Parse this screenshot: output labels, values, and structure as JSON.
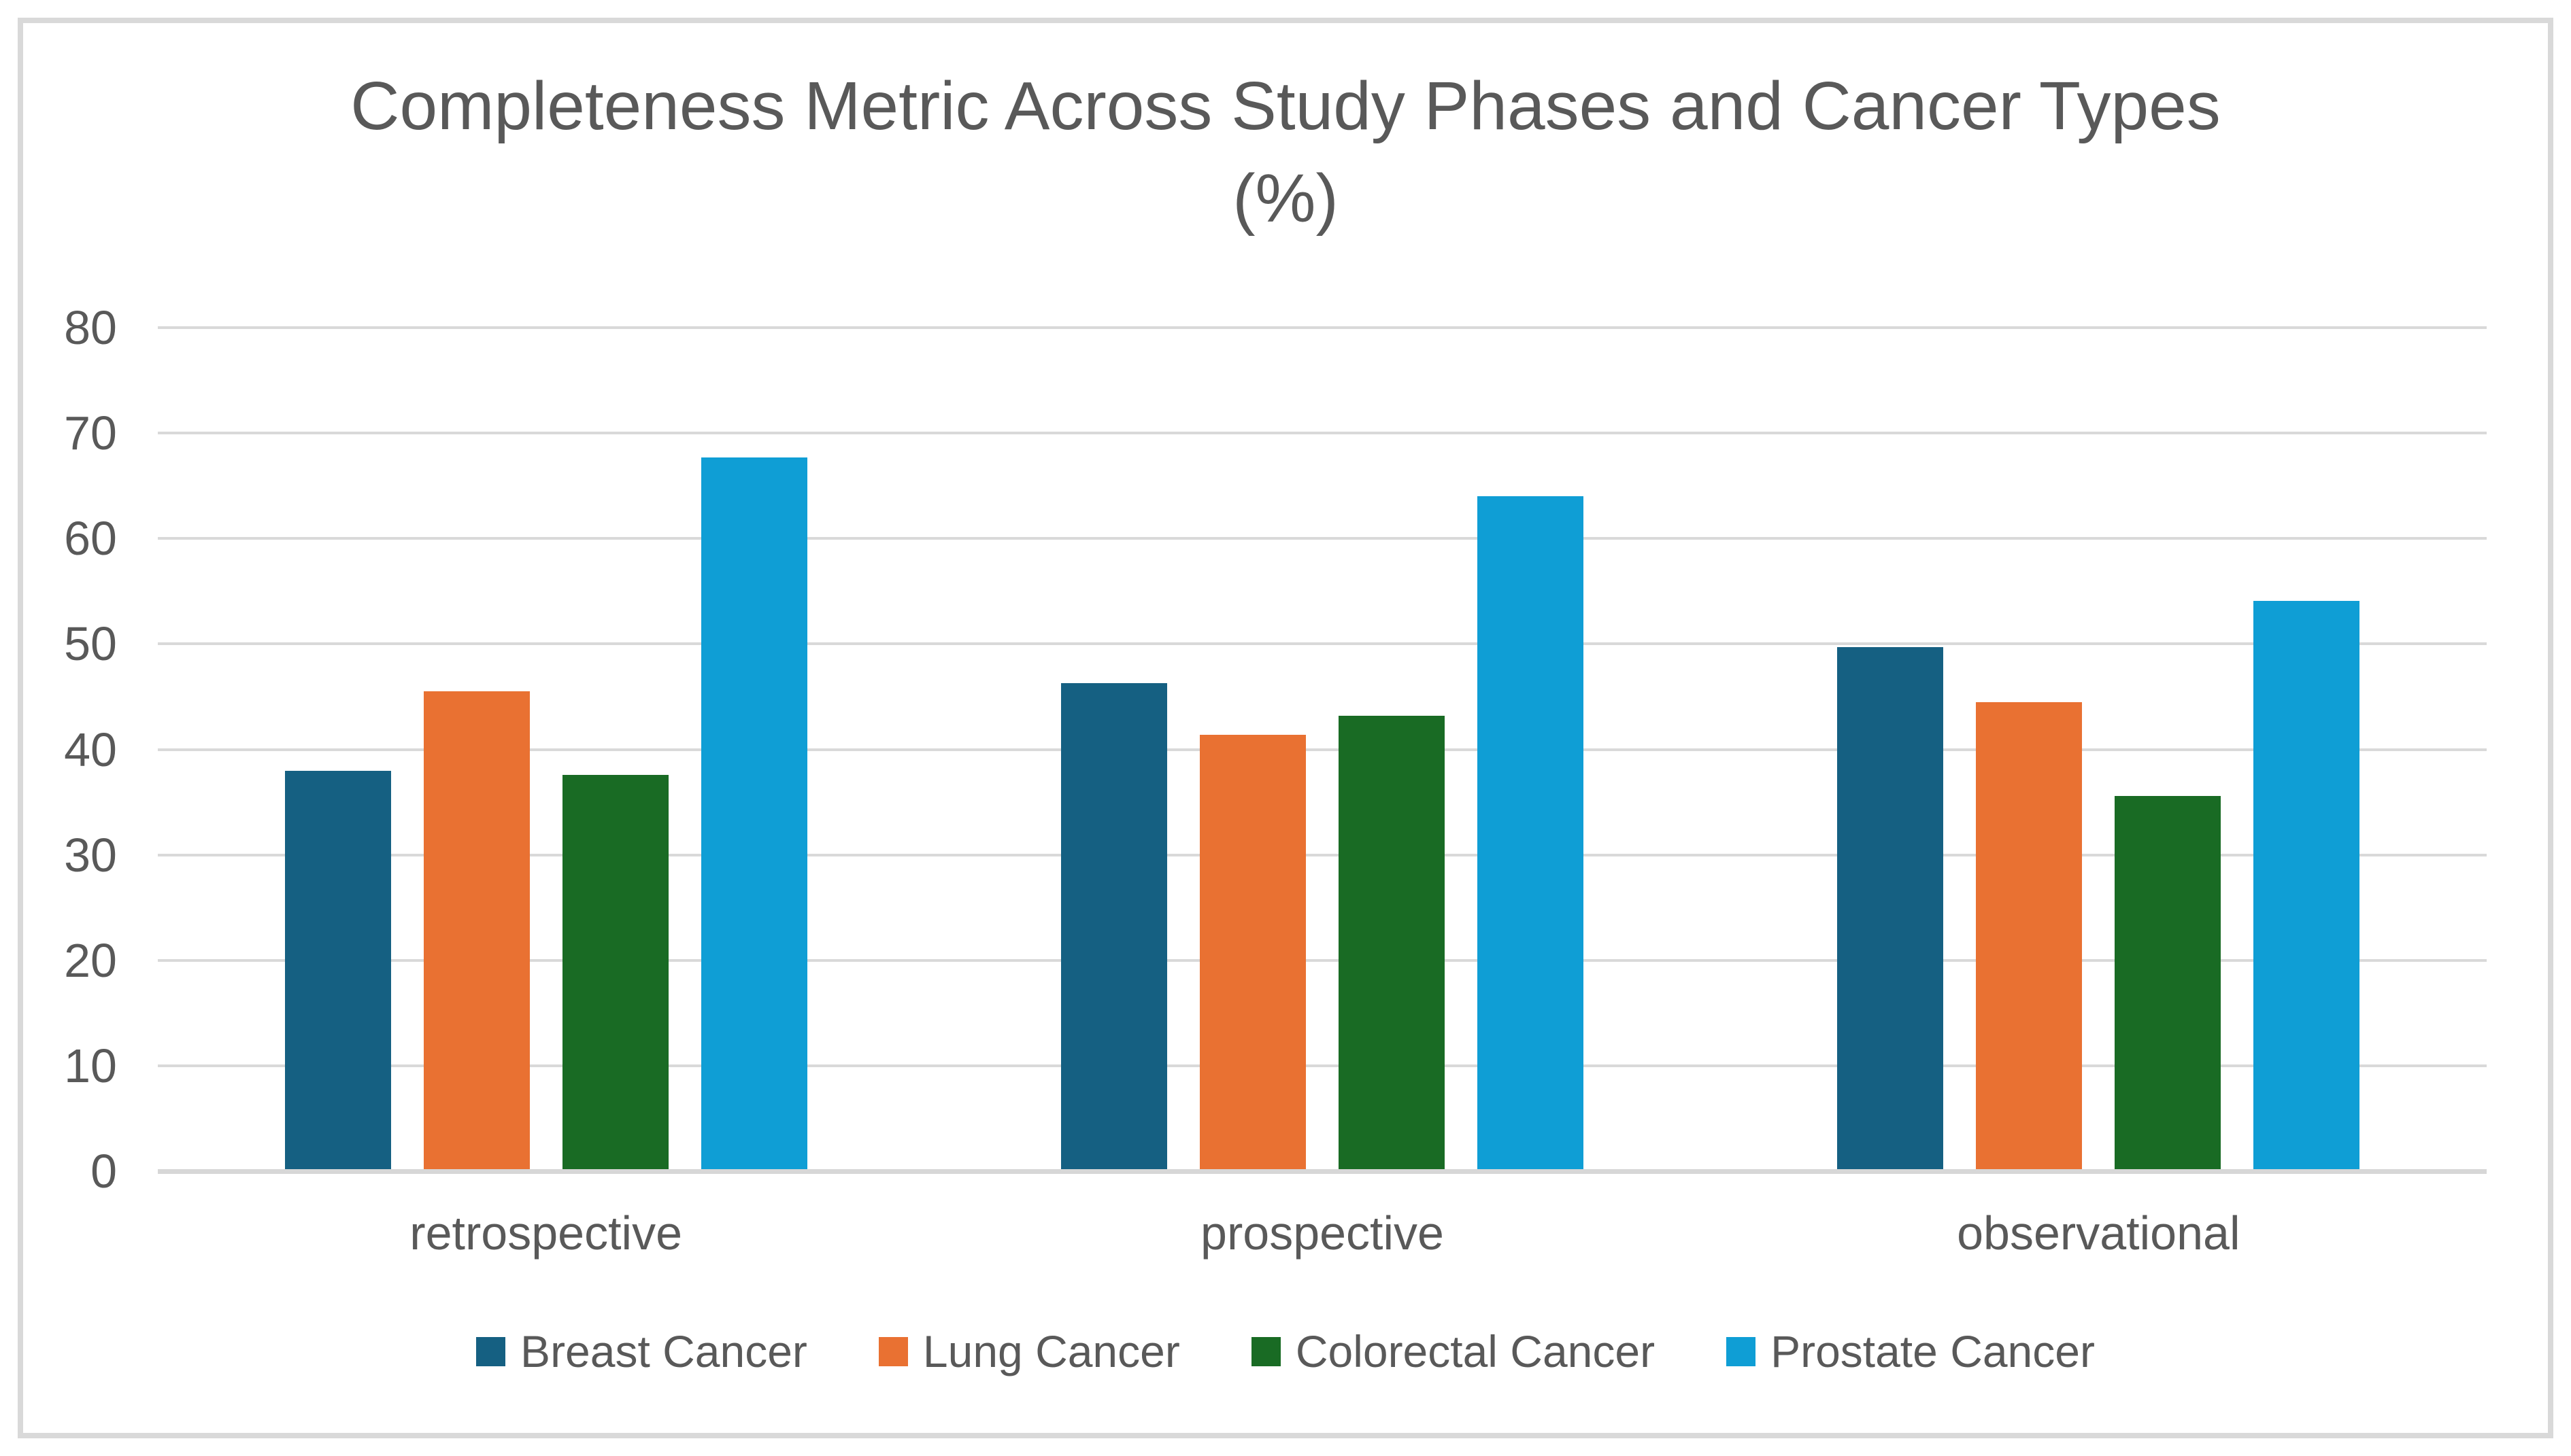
{
  "header": {
    "title_line1": "Completeness Metric Across Study Phases and Cancer Types",
    "title_line2": "(%)"
  },
  "chart_data": {
    "type": "bar",
    "title": "Completeness Metric Across Study Phases and Cancer Types (%)",
    "categories": [
      "retrospective",
      "prospective",
      "observational"
    ],
    "series": [
      {
        "name": "Breast Cancer",
        "color": "#156082",
        "values": [
          38.0,
          46.3,
          49.7
        ]
      },
      {
        "name": "Lung Cancer",
        "color": "#E97132",
        "values": [
          45.5,
          41.4,
          44.5
        ]
      },
      {
        "name": "Colorectal Cancer",
        "color": "#196B24",
        "values": [
          37.6,
          43.2,
          35.6
        ]
      },
      {
        "name": "Prostate Cancer",
        "color": "#0F9ED5",
        "values": [
          67.7,
          64.0,
          54.1
        ]
      }
    ],
    "ylim": [
      0,
      80
    ],
    "yticks": [
      0,
      10,
      20,
      30,
      40,
      50,
      60,
      70,
      80
    ],
    "xlabel": "",
    "ylabel": "",
    "grid": true,
    "legend_position": "bottom"
  },
  "style_colors": {
    "text": "#595959",
    "gridline": "#D9D9D9",
    "axis_line": "#D7D7D7",
    "frame_border": "#D9D9D9",
    "background": "#FFFFFF"
  }
}
